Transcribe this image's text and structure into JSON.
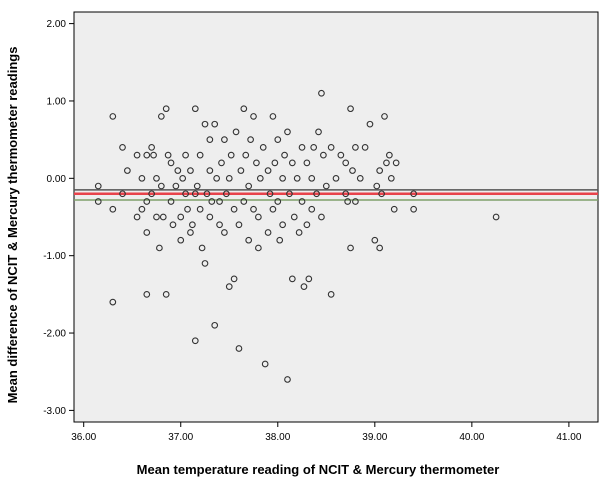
{
  "chart_data": {
    "type": "scatter",
    "title": "",
    "xlabel": "Mean temperature reading of NCIT & Mercury thermometer",
    "ylabel": "Mean difference of NCIT & Mercury thermometer readings",
    "xlim": [
      35.9,
      41.3
    ],
    "ylim": [
      -3.15,
      2.15
    ],
    "x_ticks": [
      36.0,
      37.0,
      38.0,
      39.0,
      40.0,
      41.0
    ],
    "x_tick_labels": [
      "36.00",
      "37.00",
      "38.00",
      "39.00",
      "40.00",
      "41.00"
    ],
    "y_ticks": [
      2.0,
      1.0,
      0.0,
      -1.0,
      -2.0,
      -3.0
    ],
    "y_tick_labels": [
      "2.00",
      "1.00",
      "0.00",
      "-1.00",
      "-2.00",
      "-3.00"
    ],
    "grid": false,
    "reference_lines": [
      {
        "y": -0.15,
        "color": "#555555"
      },
      {
        "y": -0.2,
        "color": "#e8434b"
      },
      {
        "y": -0.28,
        "color": "#7f9f6a"
      }
    ],
    "colors": {
      "plot_background": "#eeeeee",
      "marker": "#333333"
    },
    "points": [
      [
        36.15,
        -0.1
      ],
      [
        36.15,
        -0.3
      ],
      [
        36.3,
        0.8
      ],
      [
        36.3,
        -0.4
      ],
      [
        36.3,
        -1.6
      ],
      [
        36.4,
        0.4
      ],
      [
        36.4,
        -0.2
      ],
      [
        36.45,
        0.1
      ],
      [
        36.55,
        0.3
      ],
      [
        36.55,
        -0.5
      ],
      [
        36.6,
        -0.4
      ],
      [
        36.6,
        0.0
      ],
      [
        36.65,
        0.3
      ],
      [
        36.65,
        -0.3
      ],
      [
        36.65,
        -0.7
      ],
      [
        36.65,
        -1.5
      ],
      [
        36.7,
        0.4
      ],
      [
        36.7,
        -0.2
      ],
      [
        36.72,
        0.3
      ],
      [
        36.75,
        -0.5
      ],
      [
        36.75,
        0.0
      ],
      [
        36.78,
        -0.9
      ],
      [
        36.8,
        0.8
      ],
      [
        36.8,
        -0.1
      ],
      [
        36.82,
        -0.5
      ],
      [
        36.85,
        0.9
      ],
      [
        36.85,
        -1.5
      ],
      [
        36.87,
        0.3
      ],
      [
        36.9,
        -0.3
      ],
      [
        36.9,
        0.2
      ],
      [
        36.92,
        -0.6
      ],
      [
        36.95,
        -0.1
      ],
      [
        36.97,
        0.1
      ],
      [
        37.0,
        -0.8
      ],
      [
        37.0,
        -0.5
      ],
      [
        37.02,
        0.0
      ],
      [
        37.05,
        0.3
      ],
      [
        37.05,
        -0.2
      ],
      [
        37.07,
        -0.4
      ],
      [
        37.1,
        -0.7
      ],
      [
        37.1,
        0.1
      ],
      [
        37.12,
        -0.6
      ],
      [
        37.15,
        -0.2
      ],
      [
        37.15,
        -2.1
      ],
      [
        37.15,
        0.9
      ],
      [
        37.17,
        -0.1
      ],
      [
        37.2,
        -0.4
      ],
      [
        37.2,
        0.3
      ],
      [
        37.22,
        -0.9
      ],
      [
        37.25,
        0.7
      ],
      [
        37.25,
        -1.1
      ],
      [
        37.27,
        -0.2
      ],
      [
        37.3,
        0.5
      ],
      [
        37.3,
        0.1
      ],
      [
        37.3,
        -0.5
      ],
      [
        37.32,
        -0.3
      ],
      [
        37.35,
        0.7
      ],
      [
        37.35,
        -1.9
      ],
      [
        37.37,
        0.0
      ],
      [
        37.4,
        -0.6
      ],
      [
        37.4,
        -0.3
      ],
      [
        37.42,
        0.2
      ],
      [
        37.45,
        0.5
      ],
      [
        37.45,
        -0.7
      ],
      [
        37.47,
        -0.2
      ],
      [
        37.5,
        -1.4
      ],
      [
        37.5,
        0.0
      ],
      [
        37.52,
        0.3
      ],
      [
        37.55,
        -1.3
      ],
      [
        37.55,
        -0.4
      ],
      [
        37.57,
        0.6
      ],
      [
        37.6,
        -0.6
      ],
      [
        37.6,
        -2.2
      ],
      [
        37.62,
        0.1
      ],
      [
        37.65,
        0.9
      ],
      [
        37.65,
        -0.3
      ],
      [
        37.67,
        0.3
      ],
      [
        37.7,
        -0.1
      ],
      [
        37.7,
        -0.8
      ],
      [
        37.72,
        0.5
      ],
      [
        37.75,
        0.8
      ],
      [
        37.75,
        -0.4
      ],
      [
        37.78,
        0.2
      ],
      [
        37.8,
        -0.5
      ],
      [
        37.8,
        -0.9
      ],
      [
        37.82,
        0.0
      ],
      [
        37.85,
        0.4
      ],
      [
        37.87,
        -2.4
      ],
      [
        37.9,
        0.1
      ],
      [
        37.9,
        -0.7
      ],
      [
        37.92,
        -0.2
      ],
      [
        37.95,
        0.8
      ],
      [
        37.95,
        -0.4
      ],
      [
        37.97,
        0.2
      ],
      [
        38.0,
        -0.3
      ],
      [
        38.0,
        0.5
      ],
      [
        38.02,
        -0.8
      ],
      [
        38.05,
        0.0
      ],
      [
        38.05,
        -0.6
      ],
      [
        38.07,
        0.3
      ],
      [
        38.1,
        -2.6
      ],
      [
        38.1,
        0.6
      ],
      [
        38.12,
        -0.2
      ],
      [
        38.15,
        -1.3
      ],
      [
        38.15,
        0.2
      ],
      [
        38.17,
        -0.5
      ],
      [
        38.2,
        0.0
      ],
      [
        38.22,
        -0.7
      ],
      [
        38.25,
        0.4
      ],
      [
        38.25,
        -0.3
      ],
      [
        38.27,
        -1.4
      ],
      [
        38.3,
        0.2
      ],
      [
        38.3,
        -0.6
      ],
      [
        38.32,
        -1.3
      ],
      [
        38.35,
        0.0
      ],
      [
        38.35,
        -0.4
      ],
      [
        38.37,
        0.4
      ],
      [
        38.4,
        -0.2
      ],
      [
        38.42,
        0.6
      ],
      [
        38.45,
        1.1
      ],
      [
        38.45,
        -0.5
      ],
      [
        38.47,
        0.3
      ],
      [
        38.5,
        -0.1
      ],
      [
        38.55,
        -1.5
      ],
      [
        38.55,
        0.4
      ],
      [
        38.6,
        0.0
      ],
      [
        38.65,
        0.3
      ],
      [
        38.7,
        -0.2
      ],
      [
        38.7,
        0.2
      ],
      [
        38.72,
        -0.3
      ],
      [
        38.75,
        0.9
      ],
      [
        38.75,
        -0.9
      ],
      [
        38.77,
        0.1
      ],
      [
        38.8,
        0.4
      ],
      [
        38.8,
        -0.3
      ],
      [
        38.85,
        0.0
      ],
      [
        38.9,
        0.4
      ],
      [
        38.95,
        0.7
      ],
      [
        39.0,
        -0.8
      ],
      [
        39.02,
        -0.1
      ],
      [
        39.05,
        0.1
      ],
      [
        39.05,
        -0.9
      ],
      [
        39.07,
        -0.2
      ],
      [
        39.1,
        0.8
      ],
      [
        39.12,
        0.2
      ],
      [
        39.15,
        0.3
      ],
      [
        39.17,
        0.0
      ],
      [
        39.2,
        -0.4
      ],
      [
        39.22,
        0.2
      ],
      [
        39.4,
        -0.4
      ],
      [
        39.4,
        -0.2
      ],
      [
        40.25,
        -0.5
      ]
    ]
  }
}
